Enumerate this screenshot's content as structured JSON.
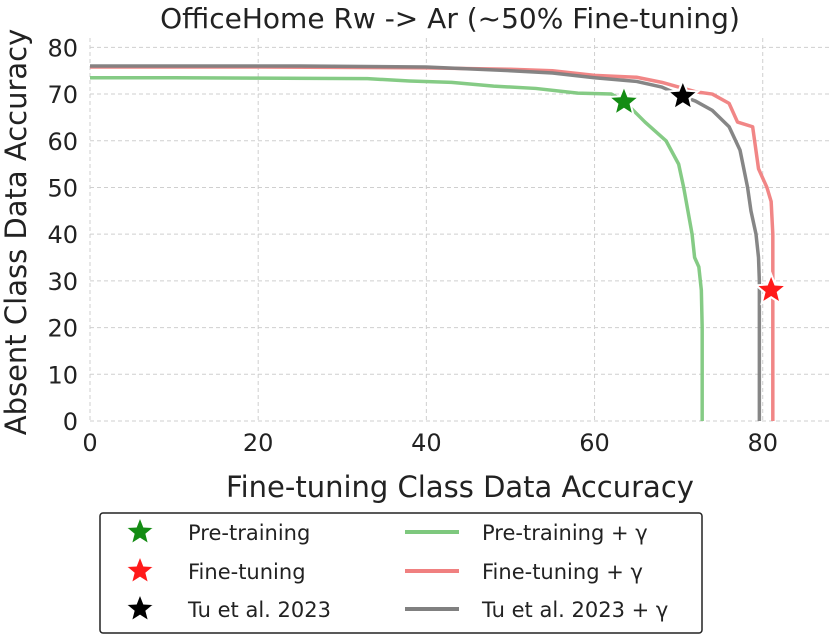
{
  "chart_data": {
    "type": "line",
    "title": "OfficeHome Rw -> Ar (~50% Fine-tuning)",
    "xlabel": "Fine-tuning Class Data Accuracy",
    "ylabel": "Absent Class Data Accuracy",
    "xlim": [
      0,
      88
    ],
    "ylim": [
      0,
      82
    ],
    "xticks": [
      0,
      20,
      40,
      60,
      80
    ],
    "yticks": [
      0,
      10,
      20,
      30,
      40,
      50,
      60,
      70,
      80
    ],
    "grid": true,
    "legend_placement": "bottom",
    "series": [
      {
        "name": "Pre-training + γ",
        "color": "#7ec87e",
        "points": [
          [
            0,
            73.5
          ],
          [
            10,
            73.5
          ],
          [
            20,
            73.4
          ],
          [
            33,
            73.3
          ],
          [
            38,
            72.8
          ],
          [
            43,
            72.5
          ],
          [
            48,
            71.7
          ],
          [
            53,
            71.2
          ],
          [
            58,
            70.2
          ],
          [
            62,
            70.0
          ],
          [
            63.5,
            68.5
          ],
          [
            66,
            64
          ],
          [
            68.5,
            60
          ],
          [
            70,
            55
          ],
          [
            70.6,
            50
          ],
          [
            71.1,
            45
          ],
          [
            71.6,
            40
          ],
          [
            71.9,
            35
          ],
          [
            72.4,
            33
          ],
          [
            72.7,
            28
          ],
          [
            72.8,
            20
          ],
          [
            72.8,
            10
          ],
          [
            72.8,
            0
          ]
        ]
      },
      {
        "name": "Fine-tuning + γ",
        "color": "#f08080",
        "points": [
          [
            0,
            75.8
          ],
          [
            20,
            75.8
          ],
          [
            40,
            75.6
          ],
          [
            50,
            75.3
          ],
          [
            55,
            75.0
          ],
          [
            60,
            74.0
          ],
          [
            65,
            73.6
          ],
          [
            68,
            72.5
          ],
          [
            70,
            71.5
          ],
          [
            72,
            70.5
          ],
          [
            74,
            70.0
          ],
          [
            76,
            68.0
          ],
          [
            77,
            64
          ],
          [
            78.8,
            63
          ],
          [
            79.5,
            54
          ],
          [
            80.5,
            50
          ],
          [
            81,
            47
          ],
          [
            81.2,
            40
          ],
          [
            81.2,
            30
          ],
          [
            81.2,
            20
          ],
          [
            81.2,
            10
          ],
          [
            81.2,
            0
          ]
        ]
      },
      {
        "name": "Tu et al. 2023 + γ",
        "color": "#808080",
        "points": [
          [
            0,
            76.0
          ],
          [
            25,
            76.0
          ],
          [
            40,
            75.8
          ],
          [
            50,
            75.0
          ],
          [
            55,
            74.5
          ],
          [
            60,
            73.5
          ],
          [
            65,
            72.7
          ],
          [
            68,
            71.5
          ],
          [
            70.5,
            69.5
          ],
          [
            72,
            68.5
          ],
          [
            74,
            66.5
          ],
          [
            76,
            63
          ],
          [
            77.3,
            58
          ],
          [
            78.2,
            50
          ],
          [
            78.6,
            45
          ],
          [
            79.2,
            40
          ],
          [
            79.5,
            35
          ],
          [
            79.6,
            30
          ],
          [
            79.6,
            20
          ],
          [
            79.6,
            10
          ],
          [
            79.6,
            0
          ]
        ]
      }
    ],
    "markers": [
      {
        "name": "Pre-training",
        "x": 63.5,
        "y": 68.3,
        "color": "#148c14"
      },
      {
        "name": "Fine-tuning",
        "x": 81.0,
        "y": 28.0,
        "color": "#ff1a1a"
      },
      {
        "name": "Tu et al. 2023",
        "x": 70.5,
        "y": 69.5,
        "color": "#000000"
      }
    ]
  },
  "legend": {
    "items": [
      {
        "label": "Pre-training",
        "kind": "star",
        "color": "#148c14"
      },
      {
        "label": "Pre-training + γ",
        "kind": "line",
        "color": "#7ec87e"
      },
      {
        "label": "Fine-tuning",
        "kind": "star",
        "color": "#ff1a1a"
      },
      {
        "label": "Fine-tuning + γ",
        "kind": "line",
        "color": "#f08080"
      },
      {
        "label": "Tu et al. 2023",
        "kind": "star",
        "color": "#000000"
      },
      {
        "label": "Tu et al. 2023 + γ",
        "kind": "line",
        "color": "#808080"
      }
    ]
  }
}
